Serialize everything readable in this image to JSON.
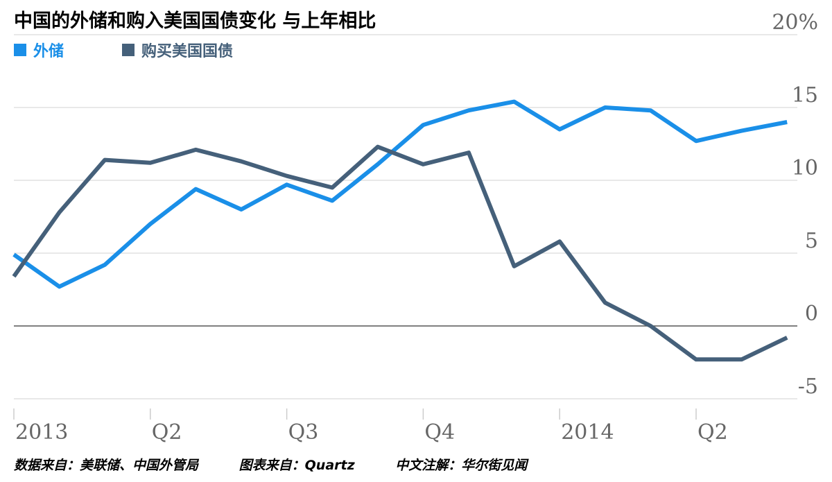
{
  "chart_data": {
    "type": "line",
    "title": "中国的外储和购入美国国债变化  与上年相比",
    "y_unit": "%",
    "ylim": [
      -5,
      20
    ],
    "y_ticks": [
      20,
      15,
      10,
      5,
      0,
      -5
    ],
    "y_tick_labels": [
      "20%",
      "15",
      "10",
      "5",
      "0",
      "-5"
    ],
    "x_range": [
      "2013-01",
      "2014-06"
    ],
    "x_ticks": [
      "2013-01",
      "2013-04",
      "2013-07",
      "2013-10",
      "2014-01",
      "2014-04"
    ],
    "x_tick_labels": [
      "2013",
      "Q2",
      "Q3",
      "Q4",
      "2014",
      "Q2"
    ],
    "grid": true,
    "legend_position": "top-left",
    "x": [
      "2013-01",
      "2013-02",
      "2013-03",
      "2013-04",
      "2013-05",
      "2013-06",
      "2013-07",
      "2013-08",
      "2013-09",
      "2013-10",
      "2013-11",
      "2013-12",
      "2014-01",
      "2014-02",
      "2014-03",
      "2014-04",
      "2014-05",
      "2014-06"
    ],
    "series": [
      {
        "name": "外储",
        "color": "#1a8fe8",
        "values": [
          4.9,
          2.7,
          4.2,
          7.0,
          9.4,
          8.0,
          9.7,
          8.6,
          11.1,
          13.8,
          14.8,
          15.4,
          13.5,
          15.0,
          14.8,
          12.7,
          13.4,
          14.0
        ]
      },
      {
        "name": "购买美国国债",
        "color": "#45607a",
        "values": [
          3.4,
          7.8,
          11.4,
          11.2,
          12.1,
          11.3,
          10.3,
          9.5,
          12.3,
          11.1,
          11.9,
          4.1,
          5.8,
          1.6,
          0.0,
          -2.3,
          -2.3,
          -0.8
        ]
      }
    ]
  },
  "source": {
    "data": "数据来自：美联储、中国外管局",
    "chart": "图表来自：Quartz",
    "translation": "中文注解：华尔街见闻"
  }
}
